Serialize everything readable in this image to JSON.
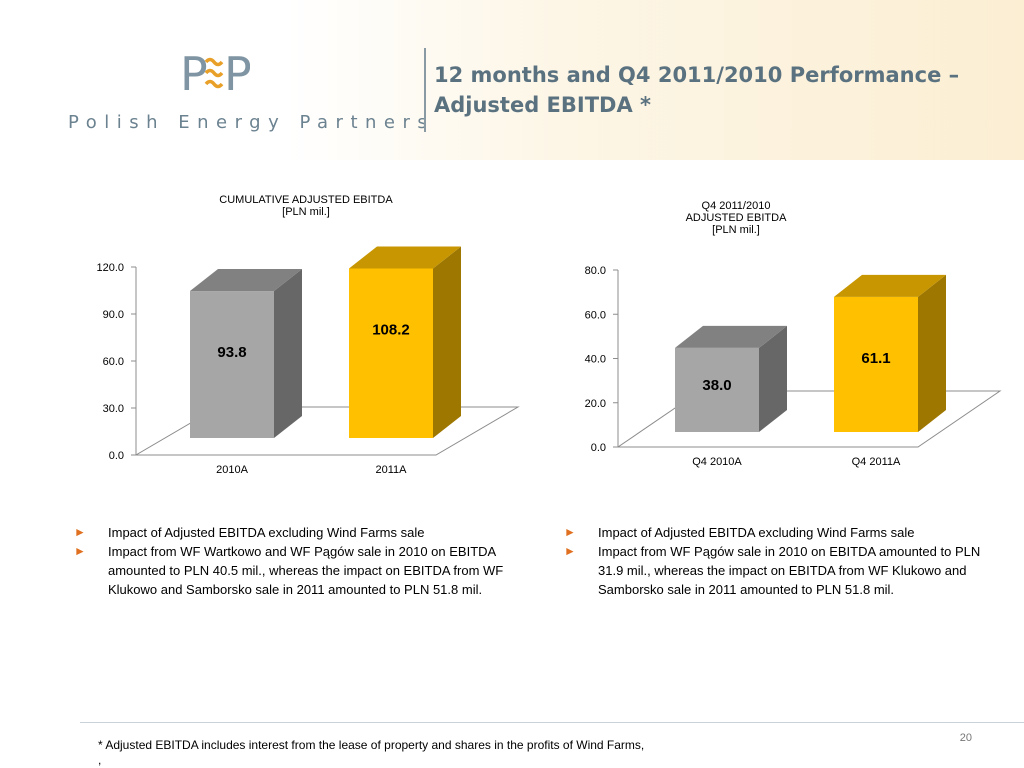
{
  "logo": {
    "mark_letters": [
      "P",
      "E",
      "P"
    ],
    "wordmark": "Polish Energy Partners"
  },
  "slide_title": "12 months and Q4 2011/2010 Performance – Adjusted EBITDA *",
  "colors": {
    "title": "#5a7280",
    "bar_2010": "#a6a6a6",
    "bar_2011": "#ffc000",
    "bullet_arrow": "#e07020"
  },
  "chart_data": [
    {
      "type": "bar",
      "title_lines": [
        "CUMULATIVE ADJUSTED EBITDA",
        "[PLN mil.]"
      ],
      "categories": [
        "2010A",
        "2011A"
      ],
      "values": [
        93.8,
        108.2
      ],
      "value_labels": [
        "93.8",
        "108.2"
      ],
      "ylim": [
        0,
        120
      ],
      "yticks": [
        "0.0",
        "30.0",
        "60.0",
        "90.0",
        "120.0"
      ],
      "ytick_values": [
        0,
        30,
        60,
        90,
        120
      ],
      "style": "3d"
    },
    {
      "type": "bar",
      "title_lines": [
        "Q4 2011/2010",
        "ADJUSTED EBITDA",
        "[PLN mil.]"
      ],
      "categories": [
        "Q4 2010A",
        "Q4 2011A"
      ],
      "values": [
        38.0,
        61.1
      ],
      "value_labels": [
        "38.0",
        "61.1"
      ],
      "ylim": [
        0,
        80
      ],
      "yticks": [
        "0.0",
        "20.0",
        "40.0",
        "60.0",
        "80.0"
      ],
      "ytick_values": [
        0,
        20,
        40,
        60,
        80
      ],
      "style": "3d"
    }
  ],
  "notes": {
    "left": [
      "Impact of Adjusted EBITDA excluding Wind Farms sale",
      "Impact  from WF Wartkowo  and WF Pągów sale in  2010 on EBITDA amounted to PLN 40.5 mil., whereas the impact on EBITDA from WF Klukowo and Samborsko sale in  2011 amounted to PLN 51.8 mil."
    ],
    "right": [
      "Impact of Adjusted EBITDA excluding Wind Farms sale",
      "Impact  from WF Pągów sale in  2010 on EBITDA amounted to PLN 31.9 mil., whereas the impact on EBITDA from WF Klukowo and Samborsko sale in  2011 amounted to PLN 51.8 mil."
    ]
  },
  "footnote": "* Adjusted EBITDA includes interest from the lease of property and shares in the profits of Wind Farms,",
  "footnote_cont": ",",
  "page_number": "20"
}
